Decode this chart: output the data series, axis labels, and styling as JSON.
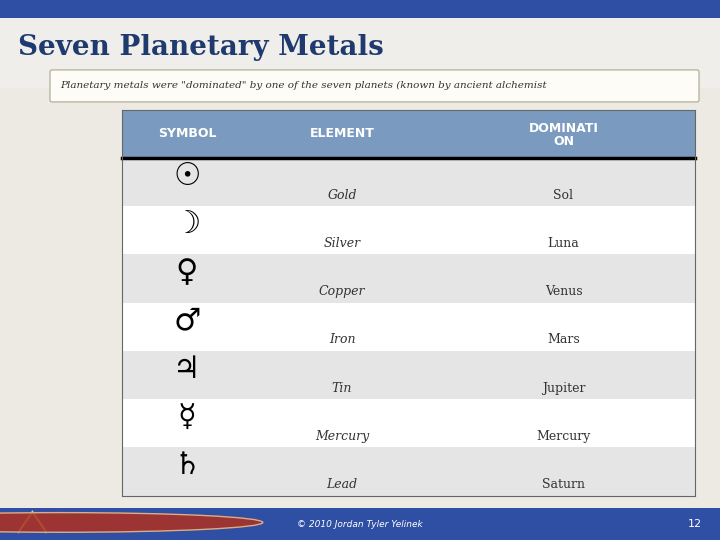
{
  "title": "Seven Planetary Metals",
  "subtitle": "Planetary metals were \"dominated\" by one of the seven planets (known by ancient alchemist",
  "symbols": [
    "☉",
    "☽",
    "♀",
    "♂",
    "♃",
    "☿",
    "♄"
  ],
  "elements": [
    "Gold",
    "Silver",
    "Copper",
    "Iron",
    "Tin",
    "Mercury",
    "Lead"
  ],
  "dominations": [
    "Sol",
    "Luna",
    "Venus",
    "Mars",
    "Jupiter",
    "Mercury",
    "Saturn"
  ],
  "shaded": [
    true,
    false,
    true,
    false,
    true,
    false,
    true
  ],
  "bg_color": "#2e4fa3",
  "slide_bg": "#f0eeea",
  "header_bg": "#7a9bbf",
  "shaded_row_bg": "#e5e5e5",
  "white_row_bg": "#ffffff",
  "header_text_color": "#ffffff",
  "title_color": "#1e3a6e",
  "footer_text": "© 2010 Jordan Tyler Yelinek",
  "page_num": "12"
}
